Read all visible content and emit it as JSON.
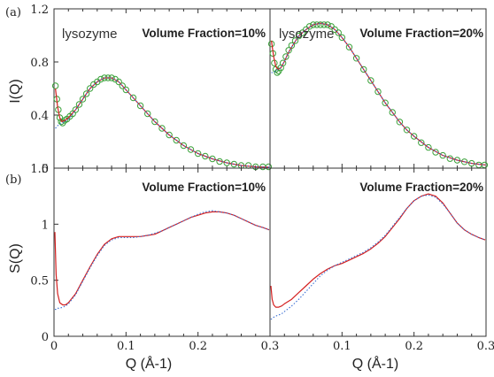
{
  "panel_labels": [
    "(a)",
    "(b)"
  ],
  "chart_data": [
    {
      "type": "scatter",
      "panel": "(a)",
      "annotations": [
        "lysozyme",
        "Volume Fraction=10%"
      ],
      "xlabel": "",
      "ylabel": "I(Q)",
      "xlim": [
        0,
        0.3
      ],
      "ylim": [
        0,
        1.2
      ],
      "yticks": [
        "0",
        "0.4",
        "0.8",
        "1.2"
      ],
      "series": [
        {
          "color": "#3aa13a",
          "marker": "open-circle",
          "x": [
            0.002,
            0.004,
            0.006,
            0.008,
            0.01,
            0.012,
            0.015,
            0.018,
            0.022,
            0.026,
            0.03,
            0.035,
            0.04,
            0.045,
            0.05,
            0.055,
            0.06,
            0.065,
            0.07,
            0.075,
            0.08,
            0.085,
            0.09,
            0.095,
            0.1,
            0.11,
            0.12,
            0.13,
            0.14,
            0.15,
            0.16,
            0.17,
            0.18,
            0.19,
            0.2,
            0.21,
            0.22,
            0.23,
            0.24,
            0.25,
            0.26,
            0.27,
            0.28,
            0.29,
            0.298
          ],
          "y": [
            0.62,
            0.52,
            0.44,
            0.38,
            0.35,
            0.34,
            0.36,
            0.37,
            0.39,
            0.41,
            0.44,
            0.48,
            0.52,
            0.56,
            0.6,
            0.63,
            0.65,
            0.67,
            0.68,
            0.68,
            0.68,
            0.67,
            0.65,
            0.62,
            0.59,
            0.53,
            0.47,
            0.41,
            0.35,
            0.3,
            0.25,
            0.21,
            0.17,
            0.14,
            0.11,
            0.09,
            0.07,
            0.05,
            0.04,
            0.03,
            0.02,
            0.02,
            0.01,
            0.01,
            0.01
          ]
        },
        {
          "color": "#d42020",
          "line": "solid",
          "x": [
            0.002,
            0.005,
            0.008,
            0.011,
            0.015,
            0.02,
            0.025,
            0.03,
            0.04,
            0.05,
            0.06,
            0.07,
            0.08,
            0.09,
            0.1,
            0.11,
            0.12,
            0.13,
            0.14,
            0.15,
            0.16,
            0.17,
            0.18,
            0.19,
            0.2,
            0.22,
            0.24,
            0.26,
            0.28,
            0.3
          ],
          "y": [
            0.6,
            0.46,
            0.38,
            0.35,
            0.36,
            0.38,
            0.41,
            0.44,
            0.52,
            0.6,
            0.65,
            0.68,
            0.68,
            0.65,
            0.59,
            0.53,
            0.47,
            0.41,
            0.35,
            0.3,
            0.25,
            0.21,
            0.17,
            0.14,
            0.11,
            0.07,
            0.04,
            0.02,
            0.01,
            0.005
          ]
        },
        {
          "color": "#3b6fd4",
          "line": "dotted",
          "x": [
            0.002,
            0.005,
            0.008,
            0.011,
            0.015,
            0.02,
            0.025,
            0.03,
            0.04,
            0.05,
            0.06,
            0.07,
            0.08,
            0.09,
            0.1,
            0.11,
            0.12,
            0.13,
            0.14,
            0.15,
            0.16,
            0.17,
            0.18,
            0.19,
            0.2,
            0.22,
            0.24,
            0.26,
            0.28,
            0.3
          ],
          "y": [
            0.3,
            0.32,
            0.33,
            0.34,
            0.35,
            0.37,
            0.4,
            0.44,
            0.52,
            0.6,
            0.65,
            0.68,
            0.68,
            0.65,
            0.59,
            0.53,
            0.47,
            0.41,
            0.35,
            0.3,
            0.25,
            0.21,
            0.17,
            0.14,
            0.11,
            0.07,
            0.04,
            0.02,
            0.01,
            0.005
          ]
        }
      ]
    },
    {
      "type": "scatter",
      "panel": "(a)",
      "annotations": [
        "lysozyme",
        "Volume Fraction=20%"
      ],
      "xlabel": "",
      "ylabel": "",
      "xlim": [
        0,
        0.3
      ],
      "ylim": [
        0,
        1.0
      ],
      "yticks": [],
      "series": [
        {
          "color": "#3aa13a",
          "marker": "open-circle",
          "x": [
            0.002,
            0.004,
            0.006,
            0.008,
            0.01,
            0.012,
            0.015,
            0.018,
            0.022,
            0.026,
            0.03,
            0.035,
            0.04,
            0.045,
            0.05,
            0.055,
            0.06,
            0.065,
            0.07,
            0.075,
            0.08,
            0.085,
            0.09,
            0.095,
            0.1,
            0.11,
            0.12,
            0.13,
            0.14,
            0.15,
            0.16,
            0.17,
            0.18,
            0.19,
            0.2,
            0.21,
            0.22,
            0.23,
            0.24,
            0.25,
            0.26,
            0.27,
            0.28,
            0.29,
            0.298
          ],
          "y": [
            0.78,
            0.72,
            0.66,
            0.62,
            0.6,
            0.61,
            0.63,
            0.66,
            0.7,
            0.74,
            0.77,
            0.8,
            0.83,
            0.85,
            0.87,
            0.89,
            0.9,
            0.9,
            0.9,
            0.9,
            0.9,
            0.89,
            0.87,
            0.85,
            0.82,
            0.76,
            0.69,
            0.62,
            0.55,
            0.48,
            0.41,
            0.35,
            0.29,
            0.24,
            0.2,
            0.16,
            0.13,
            0.1,
            0.08,
            0.06,
            0.05,
            0.04,
            0.03,
            0.02,
            0.02
          ]
        },
        {
          "color": "#d42020",
          "line": "solid",
          "x": [
            0.002,
            0.005,
            0.008,
            0.011,
            0.015,
            0.02,
            0.025,
            0.03,
            0.04,
            0.05,
            0.06,
            0.07,
            0.08,
            0.09,
            0.1,
            0.11,
            0.12,
            0.13,
            0.14,
            0.15,
            0.16,
            0.17,
            0.18,
            0.19,
            0.2,
            0.22,
            0.24,
            0.26,
            0.28,
            0.3
          ],
          "y": [
            0.8,
            0.7,
            0.64,
            0.62,
            0.63,
            0.67,
            0.72,
            0.76,
            0.83,
            0.87,
            0.9,
            0.91,
            0.9,
            0.87,
            0.82,
            0.76,
            0.69,
            0.62,
            0.55,
            0.48,
            0.41,
            0.35,
            0.29,
            0.24,
            0.2,
            0.13,
            0.08,
            0.05,
            0.03,
            0.02
          ]
        },
        {
          "color": "#3b6fd4",
          "line": "dotted",
          "x": [
            0.002,
            0.005,
            0.008,
            0.011,
            0.015,
            0.02,
            0.025,
            0.03,
            0.04,
            0.05,
            0.06,
            0.07,
            0.08,
            0.09,
            0.1,
            0.11,
            0.12,
            0.13,
            0.14,
            0.15,
            0.16,
            0.17,
            0.18,
            0.19,
            0.2,
            0.22,
            0.24,
            0.26,
            0.28,
            0.3
          ],
          "y": [
            0.6,
            0.6,
            0.61,
            0.62,
            0.63,
            0.67,
            0.72,
            0.76,
            0.83,
            0.87,
            0.9,
            0.91,
            0.9,
            0.87,
            0.82,
            0.76,
            0.69,
            0.62,
            0.55,
            0.48,
            0.41,
            0.35,
            0.29,
            0.24,
            0.2,
            0.13,
            0.08,
            0.05,
            0.03,
            0.02
          ]
        }
      ]
    },
    {
      "type": "line",
      "panel": "(b)",
      "annotations": [
        "Volume Fraction=10%"
      ],
      "xlabel": "Q (Å-1)",
      "ylabel": "S(Q)",
      "xlim": [
        0,
        0.3
      ],
      "ylim": [
        0,
        1.5
      ],
      "xticks": [
        "0",
        "0.1",
        "0.2",
        "0.3"
      ],
      "yticks": [
        "0",
        "0.5",
        "1",
        "1.5"
      ],
      "series": [
        {
          "color": "#d42020",
          "line": "solid",
          "x": [
            0.001,
            0.003,
            0.005,
            0.008,
            0.012,
            0.016,
            0.02,
            0.03,
            0.04,
            0.05,
            0.06,
            0.07,
            0.08,
            0.09,
            0.1,
            0.11,
            0.12,
            0.13,
            0.14,
            0.15,
            0.16,
            0.17,
            0.18,
            0.19,
            0.2,
            0.21,
            0.22,
            0.23,
            0.24,
            0.25,
            0.26,
            0.27,
            0.28,
            0.29,
            0.3
          ],
          "y": [
            0.93,
            0.55,
            0.38,
            0.3,
            0.28,
            0.28,
            0.3,
            0.38,
            0.5,
            0.62,
            0.73,
            0.82,
            0.87,
            0.89,
            0.89,
            0.89,
            0.89,
            0.9,
            0.91,
            0.94,
            0.97,
            1.0,
            1.03,
            1.06,
            1.08,
            1.1,
            1.11,
            1.11,
            1.1,
            1.08,
            1.05,
            1.02,
            0.99,
            0.97,
            0.95
          ]
        },
        {
          "color": "#3b6fd4",
          "line": "dotted",
          "x": [
            0.001,
            0.003,
            0.005,
            0.008,
            0.012,
            0.016,
            0.02,
            0.03,
            0.04,
            0.05,
            0.06,
            0.07,
            0.08,
            0.09,
            0.1,
            0.11,
            0.12,
            0.13,
            0.14,
            0.15,
            0.16,
            0.17,
            0.18,
            0.19,
            0.2,
            0.21,
            0.22,
            0.23,
            0.24,
            0.25,
            0.26,
            0.27,
            0.28,
            0.29,
            0.3
          ],
          "y": [
            0.24,
            0.24,
            0.25,
            0.25,
            0.26,
            0.27,
            0.29,
            0.37,
            0.49,
            0.61,
            0.72,
            0.81,
            0.86,
            0.88,
            0.88,
            0.88,
            0.89,
            0.9,
            0.92,
            0.94,
            0.97,
            1.0,
            1.03,
            1.06,
            1.09,
            1.11,
            1.12,
            1.11,
            1.1,
            1.08,
            1.05,
            1.02,
            0.99,
            0.97,
            0.95
          ]
        }
      ]
    },
    {
      "type": "line",
      "panel": "(b)",
      "annotations": [
        "Volume Fraction=20%"
      ],
      "xlabel": "Q (Å-1)",
      "ylabel": "",
      "xlim": [
        0,
        0.3
      ],
      "ylim": [
        0,
        1.5
      ],
      "xticks": [
        "0.1",
        "0.2",
        "0.3"
      ],
      "yticks": [],
      "series": [
        {
          "color": "#d42020",
          "line": "solid",
          "x": [
            0.001,
            0.003,
            0.005,
            0.008,
            0.012,
            0.016,
            0.02,
            0.03,
            0.04,
            0.05,
            0.06,
            0.07,
            0.08,
            0.09,
            0.1,
            0.11,
            0.12,
            0.13,
            0.14,
            0.15,
            0.16,
            0.17,
            0.18,
            0.19,
            0.2,
            0.21,
            0.22,
            0.23,
            0.24,
            0.25,
            0.26,
            0.27,
            0.28,
            0.29,
            0.3
          ],
          "y": [
            0.45,
            0.33,
            0.28,
            0.26,
            0.26,
            0.27,
            0.29,
            0.33,
            0.39,
            0.45,
            0.51,
            0.56,
            0.6,
            0.63,
            0.65,
            0.68,
            0.71,
            0.74,
            0.78,
            0.83,
            0.89,
            0.97,
            1.05,
            1.14,
            1.21,
            1.25,
            1.27,
            1.25,
            1.19,
            1.1,
            1.01,
            0.95,
            0.91,
            0.88,
            0.86
          ]
        },
        {
          "color": "#3b6fd4",
          "line": "dotted",
          "x": [
            0.001,
            0.003,
            0.005,
            0.008,
            0.012,
            0.016,
            0.02,
            0.03,
            0.04,
            0.05,
            0.06,
            0.07,
            0.08,
            0.09,
            0.1,
            0.11,
            0.12,
            0.13,
            0.14,
            0.15,
            0.16,
            0.17,
            0.18,
            0.19,
            0.2,
            0.21,
            0.22,
            0.23,
            0.24,
            0.25,
            0.26,
            0.27,
            0.28,
            0.29,
            0.3
          ],
          "y": [
            0.15,
            0.16,
            0.17,
            0.18,
            0.19,
            0.2,
            0.22,
            0.27,
            0.33,
            0.4,
            0.47,
            0.54,
            0.59,
            0.63,
            0.66,
            0.69,
            0.72,
            0.75,
            0.79,
            0.84,
            0.9,
            0.98,
            1.06,
            1.14,
            1.21,
            1.25,
            1.26,
            1.24,
            1.18,
            1.1,
            1.01,
            0.95,
            0.91,
            0.88,
            0.86
          ]
        }
      ]
    }
  ]
}
